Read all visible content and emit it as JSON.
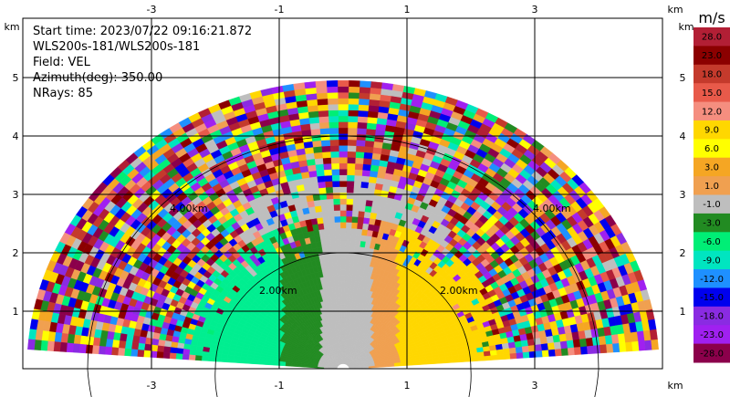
{
  "info": {
    "start_time": "Start time: 2023/07/22 09:16:21.872",
    "instrument": "WLS200s-181/WLS200s-181",
    "field": "Field: VEL",
    "azimuth": "Azimuth(deg): 350.00",
    "nrays": "NRays: 85"
  },
  "axes": {
    "x_ticks": [
      "-3",
      "-1",
      "1",
      "3"
    ],
    "y_ticks": [
      "1",
      "2",
      "3",
      "4",
      "5"
    ],
    "unit": "km"
  },
  "ring_labels": {
    "inner_left": "2.00km",
    "inner_right": "2.00km",
    "outer_left": "4.00km",
    "outer_right": "4.00km"
  },
  "colorbar": {
    "unit": "m/s",
    "labels": [
      "28.0",
      "23.0",
      "18.0",
      "15.0",
      "12.0",
      "9.0",
      "6.0",
      "3.0",
      "1.0",
      "-1.0",
      "-3.0",
      "-6.0",
      "-9.0",
      "-12.0",
      "-15.0",
      "-18.0",
      "-23.0",
      "-28.0"
    ],
    "colors": [
      "#b21f35",
      "#8b0000",
      "#c43a2c",
      "#e85a4a",
      "#f58e7f",
      "#ffd700",
      "#ffff00",
      "#f5a623",
      "#f0a050",
      "#bebebe",
      "#228b22",
      "#00ee76",
      "#00e5c0",
      "#1e90ff",
      "#0000ee",
      "#8a2be2",
      "#a020f0",
      "#8b004b"
    ]
  },
  "colors": {
    "near_green": "#00ee90",
    "dark_green": "#228b22",
    "gray": "#bebebe",
    "orange": "#f0a050",
    "yellow": "#ffd700"
  }
}
